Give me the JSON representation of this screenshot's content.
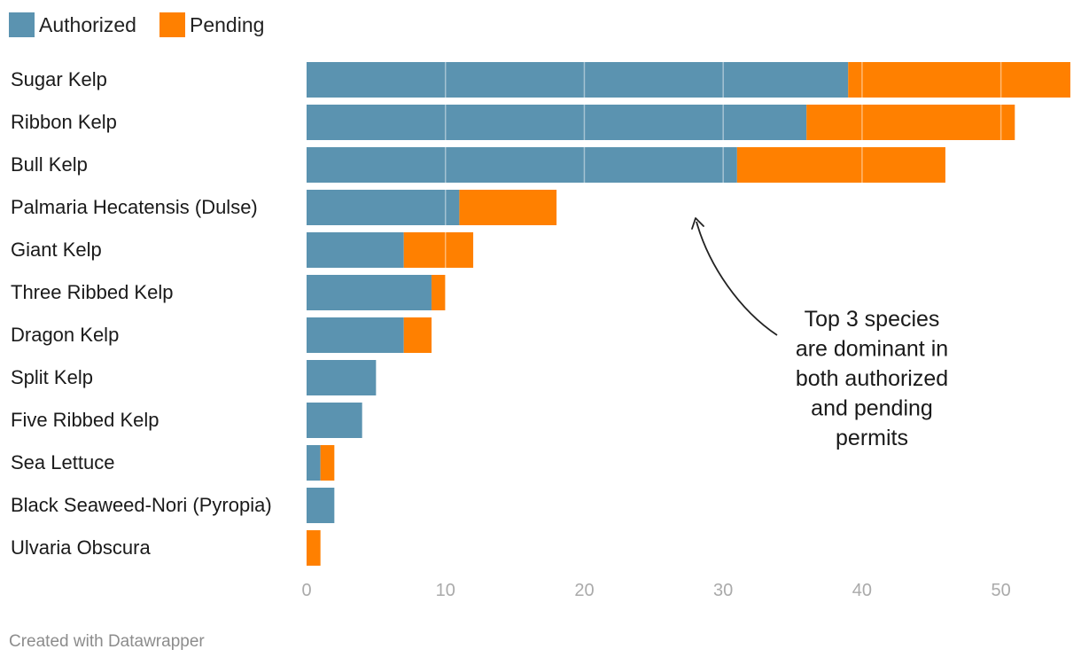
{
  "chart_data": {
    "type": "bar",
    "orientation": "horizontal",
    "stacked": true,
    "categories": [
      "Sugar Kelp",
      "Ribbon Kelp",
      "Bull Kelp",
      "Palmaria Hecatensis (Dulse)",
      "Giant Kelp",
      "Three Ribbed Kelp",
      "Dragon Kelp",
      "Split Kelp",
      "Five Ribbed Kelp",
      "Sea Lettuce",
      "Black Seaweed-Nori (Pyropia)",
      "Ulvaria Obscura"
    ],
    "series": [
      {
        "name": "Authorized",
        "color": "#5b93b0",
        "values": [
          39,
          36,
          31,
          11,
          7,
          9,
          7,
          5,
          4,
          1,
          2,
          0
        ]
      },
      {
        "name": "Pending",
        "color": "#ff8000",
        "values": [
          16,
          15,
          15,
          7,
          5,
          1,
          2,
          0,
          0,
          1,
          0,
          1
        ]
      }
    ],
    "xlim": [
      0,
      55
    ],
    "xticks": [
      0,
      10,
      20,
      30,
      40,
      50
    ],
    "tick_labels": [
      "0",
      "10",
      "20",
      "30",
      "40",
      "50"
    ],
    "legend_position": "top-left",
    "grid": true,
    "annotation": {
      "lines": [
        "Top 3 species",
        "are dominant in",
        "both authorized",
        "and pending",
        "permits"
      ],
      "points_to": "Bull Kelp"
    }
  },
  "footer": "Created with Datawrapper"
}
